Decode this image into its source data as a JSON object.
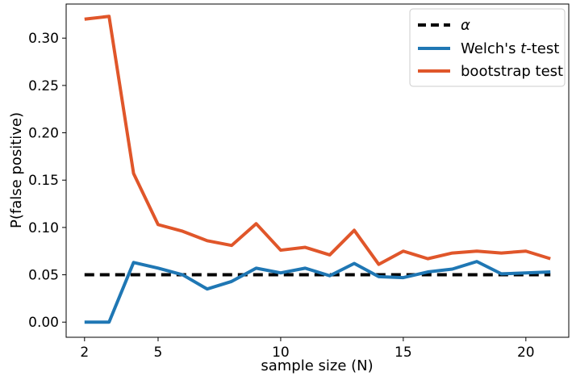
{
  "chart_data": {
    "type": "line",
    "xlabel": "sample size (N)",
    "ylabel": "P(false positive)",
    "xlim": [
      1.25,
      21.75
    ],
    "ylim": [
      -0.016,
      0.336
    ],
    "xticks": [
      2,
      5,
      10,
      15,
      20
    ],
    "xtick_labels": [
      "2",
      "5",
      "10",
      "15",
      "20"
    ],
    "yticks": [
      0.0,
      0.05,
      0.1,
      0.15,
      0.2,
      0.25,
      0.3
    ],
    "ytick_labels": [
      "0.00",
      "0.05",
      "0.10",
      "0.15",
      "0.20",
      "0.25",
      "0.30"
    ],
    "grid": false,
    "legend_position": "top-right",
    "legend": [
      {
        "key": "alpha",
        "label_symbol": "α",
        "color": "#000000",
        "style": "dashed"
      },
      {
        "key": "welch",
        "label_pre": "Welch's ",
        "label_italic": "t",
        "label_post": "-test",
        "color": "#1f77b4",
        "style": "solid"
      },
      {
        "key": "bootstrap",
        "label": "bootstrap test",
        "color": "#e0562a",
        "style": "solid"
      }
    ],
    "x": [
      2,
      3,
      4,
      5,
      6,
      7,
      8,
      9,
      10,
      11,
      12,
      13,
      14,
      15,
      16,
      17,
      18,
      19,
      20,
      21
    ],
    "series": [
      {
        "key": "alpha",
        "color": "#000000",
        "style": "dashed",
        "values": [
          0.05,
          0.05,
          0.05,
          0.05,
          0.05,
          0.05,
          0.05,
          0.05,
          0.05,
          0.05,
          0.05,
          0.05,
          0.05,
          0.05,
          0.05,
          0.05,
          0.05,
          0.05,
          0.05,
          0.05
        ]
      },
      {
        "key": "welch",
        "color": "#1f77b4",
        "style": "solid",
        "values": [
          0.0,
          0.0,
          0.063,
          0.057,
          0.05,
          0.035,
          0.043,
          0.057,
          0.052,
          0.057,
          0.049,
          0.062,
          0.048,
          0.047,
          0.053,
          0.056,
          0.064,
          0.051,
          0.052,
          0.053
        ]
      },
      {
        "key": "bootstrap",
        "color": "#e0562a",
        "style": "solid",
        "values": [
          0.32,
          0.323,
          0.157,
          0.103,
          0.096,
          0.086,
          0.081,
          0.104,
          0.076,
          0.079,
          0.071,
          0.097,
          0.061,
          0.075,
          0.067,
          0.073,
          0.075,
          0.073,
          0.075,
          0.067
        ]
      }
    ]
  }
}
